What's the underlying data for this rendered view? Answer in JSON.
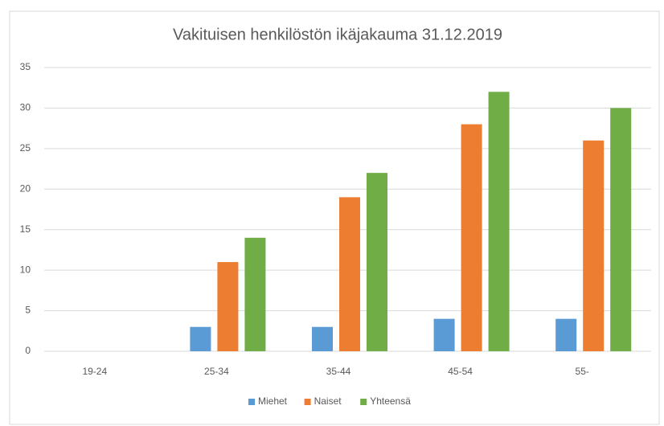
{
  "chart_data": {
    "type": "bar",
    "title": "Vakituisen henkilöstön ikäjakauma 31.12.2019",
    "categories": [
      "19-24",
      "25-34",
      "35-44",
      "45-54",
      "55-"
    ],
    "series": [
      {
        "name": "Miehet",
        "color": "#5b9bd5",
        "values": [
          0,
          3,
          3,
          4,
          4
        ]
      },
      {
        "name": "Naiset",
        "color": "#ed7d31",
        "values": [
          0,
          11,
          19,
          28,
          26
        ]
      },
      {
        "name": "Yhteensä",
        "color": "#70ad47",
        "values": [
          0,
          14,
          22,
          32,
          30
        ]
      }
    ],
    "ylim": [
      0,
      35
    ],
    "yticks": [
      0,
      5,
      10,
      15,
      20,
      25,
      30,
      35
    ],
    "grid": true,
    "legend": "bottom"
  }
}
